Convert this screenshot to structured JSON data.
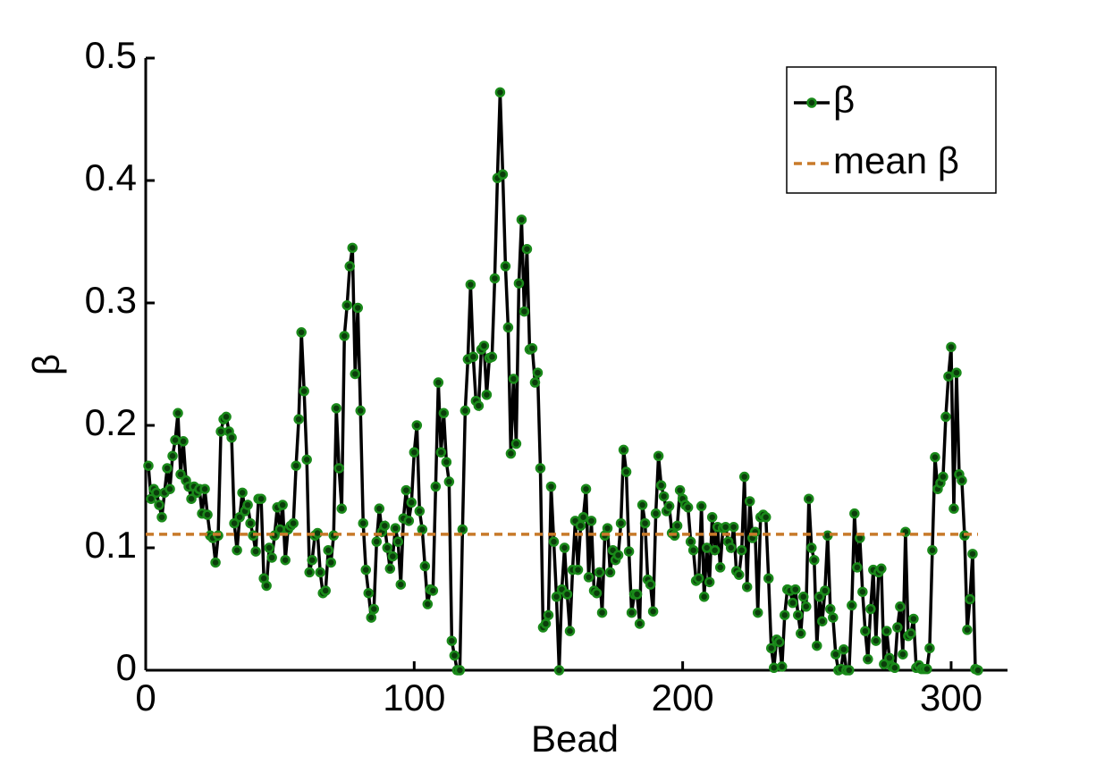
{
  "chart_data": {
    "type": "line",
    "xlabel": "Bead",
    "ylabel": "β",
    "xlim": [
      0,
      320
    ],
    "ylim": [
      0,
      0.5
    ],
    "xticks": [
      0,
      100,
      200,
      300
    ],
    "yticks": [
      0,
      0.1,
      0.2,
      0.3,
      0.4,
      0.5
    ],
    "legend": "upper right",
    "series": [
      {
        "name": "β",
        "color": "#000000",
        "marker_color": "#1a8a1a",
        "style": "solid",
        "x": [
          1,
          2,
          3,
          4,
          5,
          6,
          7,
          8,
          9,
          10,
          11,
          12,
          13,
          14,
          15,
          16,
          17,
          18,
          19,
          20,
          21,
          22,
          23,
          24,
          25,
          26,
          27,
          28,
          29,
          30,
          31,
          32,
          33,
          34,
          35,
          36,
          37,
          38,
          39,
          40,
          41,
          42,
          43,
          44,
          45,
          46,
          47,
          48,
          49,
          50,
          51,
          52,
          53,
          54,
          55,
          56,
          57,
          58,
          59,
          60,
          61,
          62,
          63,
          64,
          65,
          66,
          67,
          68,
          69,
          70,
          71,
          72,
          73,
          74,
          75,
          76,
          77,
          78,
          79,
          80,
          81,
          82,
          83,
          84,
          85,
          86,
          87,
          88,
          89,
          90,
          91,
          92,
          93,
          94,
          95,
          96,
          97,
          98,
          99,
          100,
          101,
          102,
          103,
          104,
          105,
          106,
          107,
          108,
          109,
          110,
          111,
          112,
          113,
          114,
          115,
          116,
          117,
          118,
          119,
          120,
          121,
          122,
          123,
          124,
          125,
          126,
          127,
          128,
          129,
          130,
          131,
          132,
          133,
          134,
          135,
          136,
          137,
          138,
          139,
          140,
          141,
          142,
          143,
          144,
          145,
          146,
          147,
          148,
          149,
          150,
          151,
          152,
          153,
          154,
          155,
          156,
          157,
          158,
          159,
          160,
          161,
          162,
          163,
          164,
          165,
          166,
          167,
          168,
          169,
          170,
          171,
          172,
          173,
          174,
          175,
          176,
          177,
          178,
          179,
          180,
          181,
          182,
          183,
          184,
          185,
          186,
          187,
          188,
          189,
          190,
          191,
          192,
          193,
          194,
          195,
          196,
          197,
          198,
          199,
          200,
          201,
          202,
          203,
          204,
          205,
          206,
          207,
          208,
          209,
          210,
          211,
          212,
          213,
          214,
          215,
          216,
          217,
          218,
          219,
          220,
          221,
          222,
          223,
          224,
          225,
          226,
          227,
          228,
          229,
          230,
          231,
          232,
          233,
          234,
          235,
          236,
          237,
          238,
          239,
          240,
          241,
          242,
          243,
          244,
          245,
          246,
          247,
          248,
          249,
          250,
          251,
          252,
          253,
          254,
          255,
          256,
          257,
          258,
          259,
          260,
          261,
          262,
          263,
          264,
          265,
          266,
          267,
          268,
          269,
          270,
          271,
          272,
          273,
          274,
          275,
          276,
          277,
          278,
          279,
          280,
          281,
          282,
          283,
          284,
          285,
          286,
          287,
          288,
          289,
          290,
          291,
          292,
          293,
          294,
          295,
          296,
          297,
          298,
          299,
          300,
          301,
          302,
          303,
          304,
          305,
          306,
          307,
          308,
          309,
          310
        ],
        "values": [
          0.167,
          0.14,
          0.148,
          0.145,
          0.135,
          0.125,
          0.145,
          0.165,
          0.148,
          0.175,
          0.188,
          0.21,
          0.16,
          0.187,
          0.155,
          0.15,
          0.14,
          0.15,
          0.145,
          0.148,
          0.128,
          0.148,
          0.127,
          0.11,
          0.108,
          0.088,
          0.11,
          0.195,
          0.205,
          0.207,
          0.195,
          0.19,
          0.12,
          0.098,
          0.125,
          0.145,
          0.13,
          0.135,
          0.12,
          0.11,
          0.097,
          0.14,
          0.14,
          0.075,
          0.069,
          0.1,
          0.092,
          0.11,
          0.133,
          0.115,
          0.135,
          0.09,
          0.115,
          0.118,
          0.12,
          0.167,
          0.205,
          0.276,
          0.228,
          0.172,
          0.08,
          0.09,
          0.11,
          0.112,
          0.08,
          0.063,
          0.065,
          0.098,
          0.088,
          0.11,
          0.214,
          0.165,
          0.132,
          0.273,
          0.298,
          0.33,
          0.345,
          0.242,
          0.296,
          0.212,
          0.12,
          0.082,
          0.063,
          0.043,
          0.05,
          0.105,
          0.132,
          0.113,
          0.118,
          0.1,
          0.083,
          0.093,
          0.116,
          0.105,
          0.07,
          0.124,
          0.147,
          0.122,
          0.137,
          0.178,
          0.2,
          0.13,
          0.115,
          0.085,
          0.054,
          0.066,
          0.065,
          0.15,
          0.235,
          0.178,
          0.21,
          0.17,
          0.154,
          0.024,
          0.012,
          0,
          0,
          0.115,
          0.212,
          0.254,
          0.315,
          0.256,
          0.22,
          0.216,
          0.262,
          0.265,
          0.225,
          0.255,
          0.256,
          0.32,
          0.402,
          0.472,
          0.405,
          0.33,
          0.28,
          0.177,
          0.238,
          0.185,
          0.316,
          0.368,
          0.293,
          0.344,
          0.262,
          0.263,
          0.235,
          0.243,
          0.165,
          0.035,
          0.038,
          0.045,
          0.15,
          0.105,
          0.06,
          0,
          0.066,
          0.1,
          0.062,
          0.032,
          0.082,
          0.122,
          0.082,
          0.118,
          0.125,
          0.148,
          0.076,
          0.122,
          0.065,
          0.063,
          0.08,
          0.047,
          0.11,
          0.116,
          0.08,
          0.098,
          0.09,
          0.094,
          0.12,
          0.18,
          0.162,
          0.097,
          0.047,
          0.062,
          0.062,
          0.038,
          0.135,
          0.12,
          0.074,
          0.07,
          0.048,
          0.128,
          0.175,
          0.151,
          0.142,
          0.13,
          0.134,
          0.112,
          0.11,
          0.118,
          0.147,
          0.14,
          0.135,
          0.133,
          0.105,
          0.098,
          0.073,
          0.075,
          0.134,
          0.06,
          0.1,
          0.072,
          0.125,
          0.098,
          0.117,
          0.084,
          0.116,
          0.117,
          0.105,
          0.1,
          0.117,
          0.081,
          0.078,
          0.098,
          0.158,
          0.068,
          0.138,
          0.108,
          0.113,
          0.047,
          0.125,
          0.127,
          0.125,
          0.075,
          0.018,
          0.002,
          0.025,
          0.023,
          0.003,
          0.045,
          0.066,
          0.065,
          0.055,
          0.066,
          0.045,
          0.03,
          0.06,
          0.052,
          0.14,
          0.1,
          0.09,
          0.02,
          0.06,
          0.04,
          0.065,
          0.11,
          0.05,
          0.043,
          0.013,
          0,
          0.001,
          0.017,
          0,
          0,
          0.053,
          0.128,
          0.084,
          0.108,
          0.064,
          0.032,
          0.009,
          0.05,
          0.082,
          0.024,
          0.08,
          0.083,
          0.005,
          0.032,
          0.01,
          0.003,
          0.002,
          0.035,
          0.052,
          0.013,
          0.113,
          0.028,
          0.03,
          0.042,
          0.002,
          0.004,
          0.001,
          0.001,
          0.001,
          0.018,
          0.098,
          0.174,
          0.148,
          0.153,
          0.158,
          0.207,
          0.24,
          0.264,
          0.132,
          0.243,
          0.16,
          0.155,
          0.11,
          0.033,
          0.058,
          0.095,
          0.001,
          0
        ]
      },
      {
        "name": "mean β",
        "color": "#c87a2a",
        "style": "dashed",
        "x": [
          0,
          310
        ],
        "values": [
          0.111,
          0.111
        ]
      }
    ]
  }
}
